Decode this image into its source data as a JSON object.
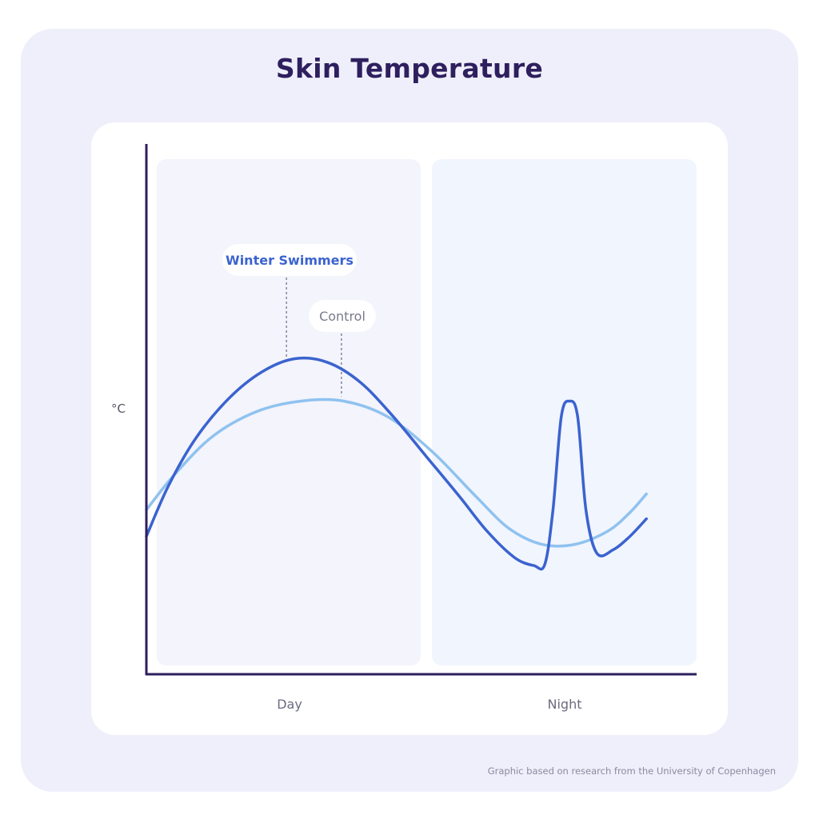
{
  "title": "Skin Temperature",
  "footnote": "Graphic based on research from the University of Copenhagen",
  "colors": {
    "background": "#efeffb",
    "title": "#2e1f5e",
    "axis": "#2e1f5e",
    "day_panel": "#f3f4fc",
    "night_panel": "#f1f5fe",
    "winter_swimmers": "#3b63cf",
    "control": "#8fc2ef"
  },
  "chart_data": {
    "type": "line",
    "title": "Skin Temperature",
    "ylabel": "°C",
    "xlabel": "",
    "x_categories": [
      "Day",
      "Night"
    ],
    "x_range": [
      0,
      100
    ],
    "y_range": [
      0,
      100
    ],
    "grid": false,
    "legend": "callout labels above curves",
    "series": [
      {
        "name": "Winter Swimmers",
        "color": "#3b63cf",
        "points": [
          [
            0,
            26
          ],
          [
            4,
            35.5
          ],
          [
            9,
            44.5
          ],
          [
            15,
            52
          ],
          [
            21,
            57
          ],
          [
            27,
            59.5
          ],
          [
            33,
            58.8
          ],
          [
            39,
            55
          ],
          [
            45,
            48.5
          ],
          [
            51,
            41
          ],
          [
            57,
            33.5
          ],
          [
            62,
            27
          ],
          [
            67,
            22
          ],
          [
            70.5,
            20.5
          ],
          [
            72.5,
            20.7
          ],
          [
            74,
            31
          ],
          [
            75.5,
            48.5
          ],
          [
            77,
            51.5
          ],
          [
            78.5,
            48.5
          ],
          [
            80,
            31
          ],
          [
            82,
            22.8
          ],
          [
            85,
            23.5
          ],
          [
            88,
            26
          ],
          [
            91,
            29.3
          ]
        ]
      },
      {
        "name": "Control",
        "color": "#8fc2ef",
        "points": [
          [
            0,
            31
          ],
          [
            5,
            37.5
          ],
          [
            12,
            44.8
          ],
          [
            20,
            49.5
          ],
          [
            28,
            51.5
          ],
          [
            36,
            51.5
          ],
          [
            44,
            48.5
          ],
          [
            52,
            42
          ],
          [
            60,
            33.5
          ],
          [
            66,
            27.5
          ],
          [
            72,
            24.5
          ],
          [
            78,
            24.5
          ],
          [
            84,
            27
          ],
          [
            88,
            30.5
          ],
          [
            91,
            34
          ]
        ]
      }
    ],
    "annotations": [
      {
        "label": "Winter Swimmers",
        "series": "Winter Swimmers",
        "x": 25.5
      },
      {
        "label": "Control",
        "series": "Control",
        "x": 35.5
      }
    ]
  }
}
